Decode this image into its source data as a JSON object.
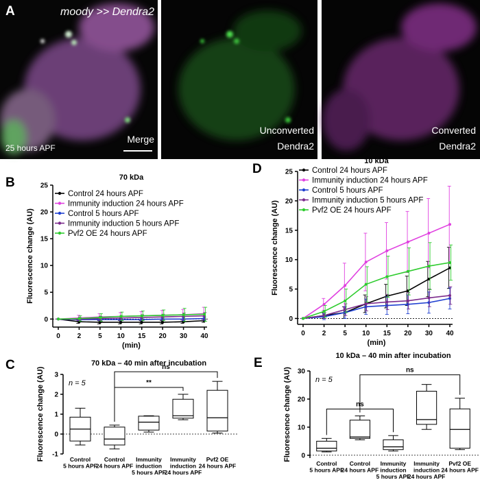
{
  "panel_a": {
    "label": "A",
    "genotype": "moody >> Dendra2",
    "timepoint": "25 hours APF",
    "images": [
      {
        "caption": [
          "Merge"
        ]
      },
      {
        "caption": [
          "Unconverted",
          "Dendra2"
        ]
      },
      {
        "caption": [
          "Converted",
          "Dendra2"
        ]
      }
    ]
  },
  "chart_data": [
    {
      "type": "line",
      "label": "B",
      "title": "70 kDa",
      "ylabel": "Fluorescence change (AU)",
      "xlabel": "(min)",
      "categories": [
        "0",
        "2",
        "5",
        "10",
        "15",
        "20",
        "30",
        "40"
      ],
      "ylim": [
        -1.5,
        25
      ],
      "yticks": [
        0,
        5,
        10,
        15,
        20,
        25
      ],
      "reference_line": 0,
      "series": [
        {
          "name": "Control 24 hours APF",
          "color": "#000000",
          "values": [
            0,
            -0.5,
            -0.6,
            -0.6,
            -0.6,
            -0.6,
            -0.5,
            -0.3
          ],
          "errors": [
            0,
            0.3,
            0.3,
            0.3,
            0.3,
            0.3,
            0.3,
            0.3
          ]
        },
        {
          "name": "Immunity induction 24 hours APF",
          "color": "#e040e0",
          "values": [
            0,
            0.2,
            0.4,
            0.5,
            0.6,
            0.7,
            0.8,
            1.0
          ],
          "errors": [
            0,
            0.5,
            0.6,
            0.7,
            0.8,
            0.9,
            1.0,
            1.2
          ]
        },
        {
          "name": "Control 5 hours APF",
          "color": "#1f3fd0",
          "values": [
            0,
            -0.1,
            -0.1,
            -0.1,
            -0.1,
            0,
            0,
            0.1
          ],
          "errors": [
            0,
            0.2,
            0.2,
            0.2,
            0.2,
            0.2,
            0.3,
            0.3
          ]
        },
        {
          "name": "Immunity induction 5 hours APF",
          "color": "#7b2a8c",
          "values": [
            0,
            0,
            0.1,
            0.2,
            0.3,
            0.4,
            0.5,
            0.6
          ],
          "errors": [
            0,
            0.3,
            0.4,
            0.4,
            0.5,
            0.5,
            0.6,
            0.6
          ]
        },
        {
          "name": "Pvf2 OE 24 hours APF",
          "color": "#2ecc2e",
          "values": [
            0,
            0.1,
            0.3,
            0.5,
            0.6,
            0.7,
            0.8,
            0.9
          ],
          "errors": [
            0,
            0.5,
            0.7,
            0.8,
            0.9,
            1.0,
            1.2,
            1.3
          ]
        }
      ]
    },
    {
      "type": "line",
      "label": "D",
      "title": "10 kDa",
      "ylabel": "Fluorescence change (AU)",
      "xlabel": "(min)",
      "categories": [
        "0",
        "2",
        "5",
        "10",
        "15",
        "20",
        "30",
        "40"
      ],
      "ylim": [
        -1,
        25
      ],
      "yticks": [
        0,
        5,
        10,
        15,
        20,
        25
      ],
      "reference_line": 0,
      "series": [
        {
          "name": "Control 24 hours APF",
          "color": "#000000",
          "values": [
            0,
            0.5,
            1.0,
            2.5,
            3.8,
            4.7,
            6.7,
            8.6
          ],
          "errors": [
            0,
            0.5,
            1.0,
            1.5,
            2.0,
            2.5,
            3.0,
            3.5
          ]
        },
        {
          "name": "Immunity induction 24 hours APF",
          "color": "#e040e0",
          "values": [
            0,
            2.4,
            5.6,
            9.6,
            11.5,
            13.0,
            14.5,
            16.0
          ],
          "errors": [
            0,
            1.0,
            3.8,
            4.9,
            4.8,
            5.2,
            5.9,
            6.5
          ]
        },
        {
          "name": "Control 5 hours APF",
          "color": "#1f3fd0",
          "values": [
            0,
            0.3,
            1.0,
            2.0,
            2.2,
            2.4,
            2.7,
            3.4
          ],
          "errors": [
            0,
            0.5,
            1.0,
            1.3,
            1.5,
            1.6,
            1.8,
            1.8
          ]
        },
        {
          "name": "Immunity induction 5 hours APF",
          "color": "#7b2a8c",
          "values": [
            0,
            0.5,
            1.5,
            2.5,
            2.8,
            3.0,
            3.5,
            3.9
          ],
          "errors": [
            0,
            0.5,
            1.0,
            1.2,
            1.3,
            1.4,
            1.5,
            1.5
          ]
        },
        {
          "name": "Pvf2 OE 24 hours APF",
          "color": "#2ecc2e",
          "values": [
            0,
            1.2,
            3.0,
            5.8,
            7.1,
            8.0,
            8.9,
            9.5
          ],
          "errors": [
            0,
            1.0,
            2.0,
            3.0,
            3.5,
            4.0,
            4.0,
            3.0
          ]
        }
      ]
    },
    {
      "type": "box",
      "label": "C",
      "title": "70 kDa – 40 min after incubation",
      "ylabel": "Fluorescence change (AU)",
      "annotation": "n = 5",
      "categories": [
        [
          "Control",
          "5 hours APF"
        ],
        [
          "Control",
          "24 hours APF"
        ],
        [
          "Immunity",
          "induction",
          "5 hours APF"
        ],
        [
          "Immunity",
          "induction",
          "24 hours APF"
        ],
        [
          "Pvf2 OE",
          "24 hours APF"
        ]
      ],
      "boxes": [
        {
          "min": -0.55,
          "q1": -0.35,
          "median": 0.25,
          "q3": 0.85,
          "max": 1.3
        },
        {
          "min": -0.75,
          "q1": -0.55,
          "median": -0.25,
          "q3": 0.35,
          "max": 0.45
        },
        {
          "min": 0.1,
          "q1": 0.2,
          "median": 0.6,
          "q3": 0.9,
          "max": 0.92
        },
        {
          "min": 0.72,
          "q1": 0.8,
          "median": 0.92,
          "q3": 1.75,
          "max": 2.0
        },
        {
          "min": 0.05,
          "q1": 0.15,
          "median": 0.82,
          "q3": 2.2,
          "max": 2.65
        }
      ],
      "ylim": [
        -1,
        3
      ],
      "yticks": [
        -1,
        0,
        1,
        2,
        3
      ],
      "reference_line": 0,
      "comparisons": [
        {
          "groups": [
            1,
            3
          ],
          "text": "**"
        },
        {
          "groups": [
            1,
            4
          ],
          "text": "ns"
        }
      ]
    },
    {
      "type": "box",
      "label": "E",
      "title": "10 kDa – 40 min after incubation",
      "ylabel": "Fluorescence change (AU)",
      "annotation": "n = 5",
      "categories": [
        [
          "Control",
          "5 hours APF"
        ],
        [
          "Control",
          "24 hours APF"
        ],
        [
          "Immunity",
          "induction",
          "5 hours APF"
        ],
        [
          "Immunity",
          "induction",
          "24 hours APF"
        ],
        [
          "Pvf2 OE",
          "24 hours APF"
        ]
      ],
      "boxes": [
        {
          "min": 1.2,
          "q1": 1.5,
          "median": 2.5,
          "q3": 5.0,
          "max": 6.0
        },
        {
          "min": 5.5,
          "q1": 6.0,
          "median": 6.5,
          "q3": 12.5,
          "max": 14.0
        },
        {
          "min": 1.5,
          "q1": 2.0,
          "median": 3.0,
          "q3": 5.5,
          "max": 7.0
        },
        {
          "min": 9.2,
          "q1": 11.0,
          "median": 12.7,
          "q3": 22.8,
          "max": 25.2
        },
        {
          "min": 2.0,
          "q1": 2.5,
          "median": 9.2,
          "q3": 16.5,
          "max": 20.3
        }
      ],
      "ylim": [
        -1,
        30
      ],
      "yticks": [
        0,
        10,
        20,
        30
      ],
      "reference_line": 0,
      "comparisons": [
        {
          "groups": [
            0,
            2
          ],
          "text": "ns"
        },
        {
          "groups": [
            1,
            4
          ],
          "text": "ns"
        }
      ]
    }
  ]
}
